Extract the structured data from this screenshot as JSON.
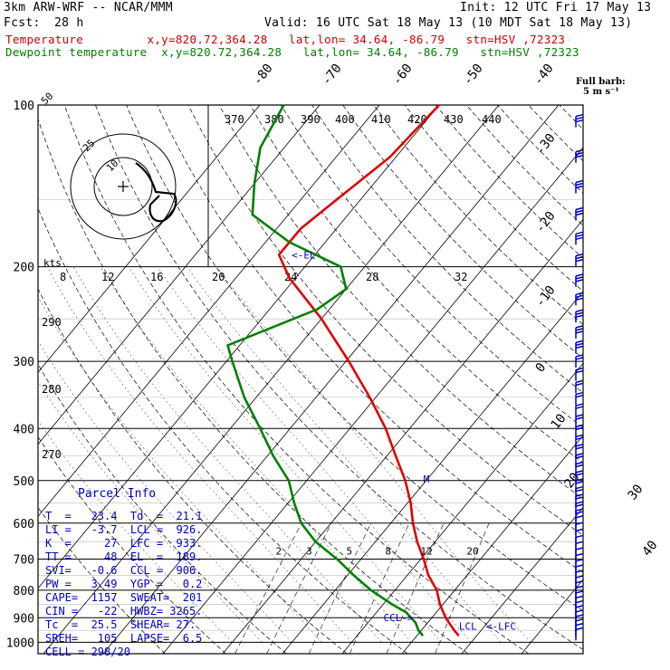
{
  "header": {
    "model": "3km ARW-WRF -- NCAR/MMM",
    "init": "Init: 12 UTC Fri 17 May 13",
    "fcst_label": "Fcst:",
    "fcst_value": "28 h",
    "valid": "Valid: 16 UTC Sat 18 May 13 (10 MDT Sat 18 May 13)",
    "temp_line": "Temperature         x,y=820.72,364.28   lat,lon= 34.64, -86.79   stn=HSV ,72323",
    "dew_line": "Dewpoint temperature  x,y=820.72,364.28   lat,lon= 34.64, -86.79   stn=HSV ,72323"
  },
  "chart_data": {
    "type": "line",
    "title": "",
    "ylabel": "",
    "xlabel": "",
    "pressure_levels": [
      "100",
      "200",
      "300",
      "400",
      "500",
      "600",
      "700",
      "800",
      "900",
      "1000"
    ],
    "pressure_values": [
      100,
      200,
      300,
      400,
      500,
      600,
      700,
      800,
      900,
      1000
    ],
    "isotherm_labels": [
      "-80",
      "-70",
      "-60",
      "-50",
      "-40",
      "-30",
      "-20",
      "-10",
      "0",
      "10",
      "20",
      "30",
      "40"
    ],
    "isotherm_values": [
      -80,
      -70,
      -60,
      -50,
      -40,
      -30,
      -20,
      -10,
      0,
      10,
      20,
      30,
      40
    ],
    "theta_labels": [
      "370",
      "380",
      "390",
      "400",
      "410",
      "420",
      "430",
      "440"
    ],
    "dry_adiabat_labels": [
      "290",
      "280",
      "270"
    ],
    "mixing_ratio_labels": [
      "2",
      "3",
      "5",
      "8",
      "12",
      "20"
    ],
    "hodograph_axis_labels": [
      "8",
      "12",
      "16",
      "20",
      "24",
      "28",
      "32"
    ],
    "hodograph_units": "kts",
    "hodograph_ring_labels": [
      "50",
      "25",
      "10"
    ],
    "hodograph_motion_label": "",
    "series": [
      {
        "name": "Temperature",
        "color": "#e00000",
        "points": [
          [
            972,
            27
          ],
          [
            950,
            25.5
          ],
          [
            900,
            22.3
          ],
          [
            850,
            19.5
          ],
          [
            800,
            17
          ],
          [
            750,
            13.5
          ],
          [
            700,
            10.5
          ],
          [
            650,
            7
          ],
          [
            600,
            3.7
          ],
          [
            550,
            0.5
          ],
          [
            500,
            -3.5
          ],
          [
            450,
            -8.5
          ],
          [
            400,
            -14
          ],
          [
            350,
            -21
          ],
          [
            300,
            -29.5
          ],
          [
            250,
            -40
          ],
          [
            210,
            -51
          ],
          [
            190,
            -56
          ],
          [
            170,
            -56
          ],
          [
            150,
            -54
          ],
          [
            125,
            -51
          ],
          [
            100,
            -50
          ]
        ]
      },
      {
        "name": "Dewpoint temperature",
        "color": "#008000",
        "points": [
          [
            972,
            21
          ],
          [
            950,
            19.5
          ],
          [
            920,
            18
          ],
          [
            880,
            15
          ],
          [
            850,
            11.5
          ],
          [
            800,
            6
          ],
          [
            750,
            1
          ],
          [
            700,
            -4
          ],
          [
            650,
            -10
          ],
          [
            600,
            -15
          ],
          [
            550,
            -19
          ],
          [
            500,
            -23
          ],
          [
            450,
            -29
          ],
          [
            400,
            -35
          ],
          [
            350,
            -42
          ],
          [
            300,
            -49
          ],
          [
            280,
            -52
          ],
          [
            240,
            -42
          ],
          [
            220,
            -40
          ],
          [
            200,
            -44
          ],
          [
            180,
            -56
          ],
          [
            160,
            -66
          ],
          [
            140,
            -70
          ],
          [
            120,
            -74
          ],
          [
            100,
            -76
          ]
        ]
      }
    ],
    "annotations": [
      "<-EL",
      "M",
      "LCL",
      "<-LFC",
      "CCL->"
    ],
    "wind_key": "Full barb:\n5 m s⁻¹"
  },
  "parcel_info": {
    "title": "Parcel Info",
    "rows": [
      "T  =   23.4  Td  =  21.1",
      "LI =   -3.7  LCL =  926.",
      "K  =     27  LFC =  933.",
      "TT =     48  EL  =  189.",
      "SVI=   -0.6  CCL =  906.",
      "PW =   3.49  YGP =   0.2",
      "CAPE=  1157  SWEAT=  201",
      "CIN =   -22  HWBZ= 3265.",
      "Tc  =  25.5  SHEAR= 27.",
      "SREH=   105  LAPSE=  6.5",
      "CELL = 298/20"
    ]
  },
  "colors": {
    "grid": "#000000",
    "temperature": "#e00000",
    "dewpoint": "#008000",
    "wind": "#0000c0",
    "text_blue": "#0000c0"
  }
}
